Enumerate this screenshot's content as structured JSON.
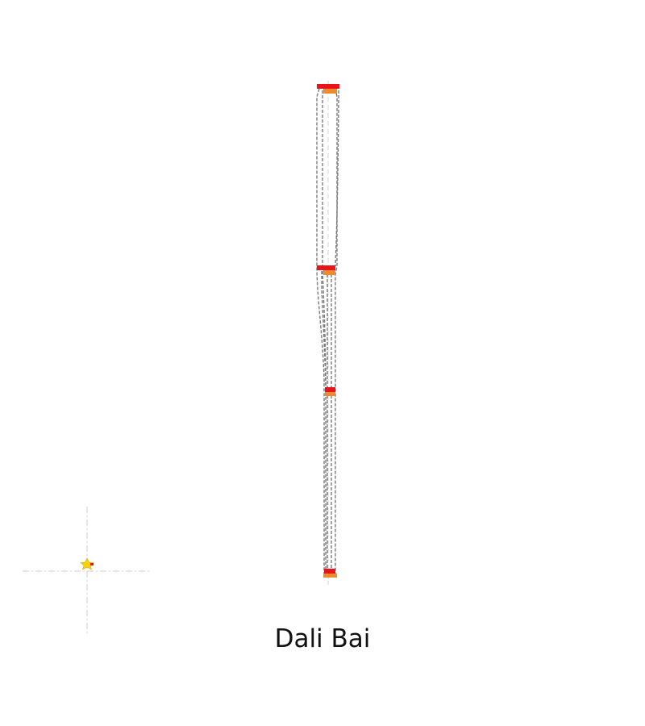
{
  "caption": "Dali Bai",
  "colors": {
    "background": "#ffffff",
    "link_line": "#7a7a7a",
    "axis_dash": "#cccccc",
    "node_red": "#e8141c",
    "node_orange": "#f08a2c",
    "marker_yellow": "#f5d400",
    "caption_text": "#111111"
  },
  "diagram": {
    "node_count": 4,
    "marker_icon": "yellow-star-marker"
  }
}
